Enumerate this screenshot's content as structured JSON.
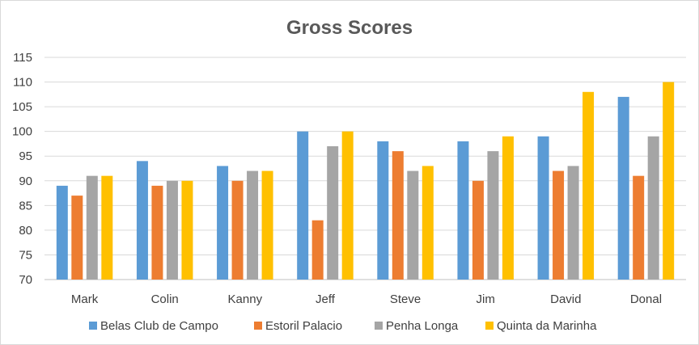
{
  "chart_data": {
    "type": "bar",
    "title": "Gross Scores",
    "xlabel": "",
    "ylabel": "",
    "categories": [
      "Mark",
      "Colin",
      "Kanny",
      "Jeff",
      "Steve",
      "Jim",
      "David",
      "Donal"
    ],
    "ylim": [
      70,
      115
    ],
    "yticks": [
      70,
      75,
      80,
      85,
      90,
      95,
      100,
      105,
      110,
      115
    ],
    "grid": true,
    "legend_position": "bottom",
    "series": [
      {
        "name": "Belas Club de Campo",
        "color": "#5b9bd5",
        "values": [
          89,
          94,
          93,
          100,
          98,
          98,
          99,
          107
        ]
      },
      {
        "name": "Estoril Palacio",
        "color": "#ed7d31",
        "values": [
          87,
          89,
          90,
          82,
          96,
          90,
          92,
          91
        ]
      },
      {
        "name": "Penha Longa",
        "color": "#a5a5a5",
        "values": [
          91,
          90,
          92,
          97,
          92,
          96,
          93,
          99
        ]
      },
      {
        "name": "Quinta da Marinha",
        "color": "#ffc000",
        "values": [
          91,
          90,
          92,
          100,
          93,
          99,
          108,
          110
        ]
      }
    ]
  }
}
